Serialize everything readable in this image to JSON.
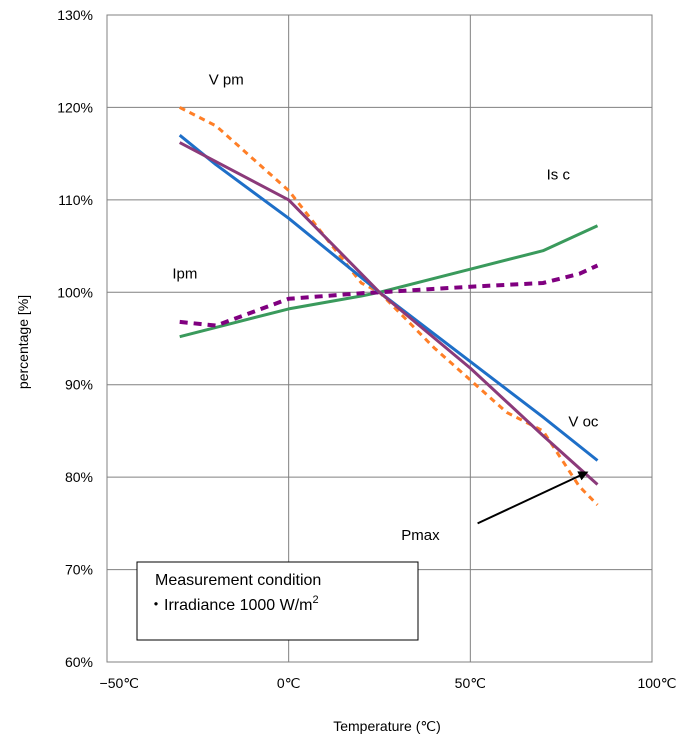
{
  "chart_data": {
    "type": "line",
    "xlabel": "Temperature (℃)",
    "ylabel": "percentage [%]",
    "xlim": [
      -50,
      100
    ],
    "ylim": [
      60,
      130
    ],
    "x_ticks": [
      "−50℃",
      "0℃",
      "50℃",
      "100℃"
    ],
    "x_tick_values": [
      -50,
      0,
      50,
      100
    ],
    "y_ticks": [
      "60%",
      "70%",
      "80%",
      "90%",
      "100%",
      "110%",
      "120%",
      "130%"
    ],
    "y_tick_values": [
      60,
      70,
      80,
      90,
      100,
      110,
      120,
      130
    ],
    "grid": true,
    "series": [
      {
        "name": "Vpm",
        "color": "#ff7f27",
        "style": "dashed",
        "x": [
          -30,
          -20,
          0,
          10,
          20,
          25,
          40,
          60,
          70,
          80,
          85
        ],
        "y": [
          120,
          118,
          111,
          106,
          101,
          100,
          94,
          87,
          85,
          79,
          77
        ]
      },
      {
        "name": "Isc",
        "color": "#3a9a5c",
        "style": "solid",
        "x": [
          -30,
          -20,
          0,
          20,
          25,
          50,
          70,
          85
        ],
        "y": [
          95.2,
          96.2,
          98.2,
          99.6,
          100,
          102.5,
          104.5,
          107.2
        ]
      },
      {
        "name": "Ipm",
        "color": "#800080",
        "style": "dotted",
        "x": [
          -30,
          -20,
          0,
          20,
          25,
          50,
          70,
          80,
          85
        ],
        "y": [
          96.8,
          96.4,
          99.3,
          99.9,
          100,
          100.6,
          101,
          102,
          102.9
        ]
      },
      {
        "name": "Voc",
        "color": "#1e6fc8",
        "style": "solid",
        "x": [
          -30,
          -20,
          0,
          25,
          50,
          70,
          85
        ],
        "y": [
          117,
          113.8,
          108,
          100,
          92.5,
          86.5,
          81.8
        ]
      },
      {
        "name": "Pmax",
        "color": "#8b3a7a",
        "style": "solid",
        "x": [
          -30,
          0,
          25,
          50,
          70,
          85
        ],
        "y": [
          116.2,
          110,
          100,
          91.8,
          84.5,
          79.2
        ]
      }
    ],
    "annotations": [
      {
        "text": "V pm",
        "x": -22,
        "y": 122.5
      },
      {
        "text": "Is c",
        "x": 71,
        "y": 112.2
      },
      {
        "text": "Ipm",
        "x": -32,
        "y": 101.5
      },
      {
        "text": "V oc",
        "x": 77,
        "y": 85.5
      },
      {
        "text": "Pmax",
        "x": 31,
        "y": 73.2
      }
    ],
    "arrow": {
      "from": [
        52,
        75
      ],
      "to": [
        82,
        80.5
      ]
    },
    "note_box": {
      "line1": "Measurement condition",
      "line2": "・Irradiance 1000 W/m",
      "superscript": "2"
    }
  }
}
